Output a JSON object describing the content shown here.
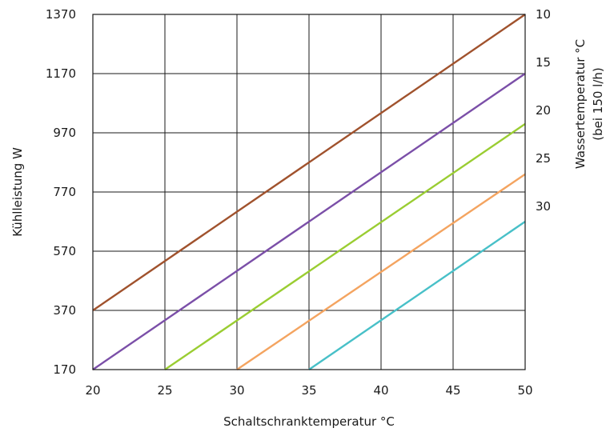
{
  "chart_data": {
    "type": "line",
    "xlabel": "Schaltschranktemperatur °C",
    "ylabel": "Kühlleistung W",
    "y2label_line1": "Wassertemperatur °C",
    "y2label_line2": "(bei 150 l/h)",
    "xlim": [
      20,
      50
    ],
    "ylim": [
      170,
      1370
    ],
    "x_ticks": [
      20,
      25,
      30,
      35,
      40,
      45,
      50
    ],
    "y_ticks": [
      170,
      370,
      570,
      770,
      970,
      1170,
      1370
    ],
    "grid": true,
    "series": [
      {
        "name": "10",
        "color": "#a0522d",
        "x": [
          20,
          50
        ],
        "y": [
          370,
          1370
        ]
      },
      {
        "name": "15",
        "color": "#7b4fa8",
        "x": [
          20,
          50
        ],
        "y": [
          170,
          1170
        ]
      },
      {
        "name": "20",
        "color": "#9acd32",
        "x": [
          25,
          50
        ],
        "y": [
          170,
          1000
        ]
      },
      {
        "name": "25",
        "color": "#f4a460",
        "x": [
          30,
          50
        ],
        "y": [
          170,
          830
        ]
      },
      {
        "name": "30",
        "color": "#48c0c8",
        "x": [
          35,
          50
        ],
        "y": [
          170,
          670
        ]
      }
    ]
  }
}
